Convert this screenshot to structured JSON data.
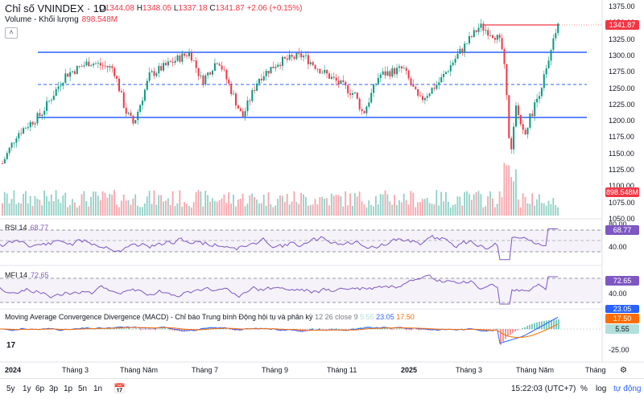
{
  "header": {
    "title": "Chỉ số VNINDEX · 1D",
    "ohlc": {
      "o_label": "O",
      "o": "1344.08",
      "h_label": "H",
      "h": "1348.05",
      "l_label": "L",
      "l": "1337.18",
      "c_label": "C",
      "c": "1341.87",
      "change": "+2.06 (+0.15%)"
    },
    "volume_label": "Volume - Khối lượng",
    "volume_value": "898.548M"
  },
  "price_axis": {
    "ticks": [
      "1375.00",
      "1350.00",
      "1325.00",
      "1300.00",
      "1275.00",
      "1250.00",
      "1225.00",
      "1200.00",
      "1175.00",
      "1150.00",
      "1125.00",
      "1100.00",
      "1075.00",
      "1050.00"
    ],
    "last_price": "1341.87",
    "last_volume": "898.548M"
  },
  "rsi": {
    "label": "RSI",
    "period": "14",
    "value": "68.77",
    "ticks": [
      "80.00",
      "40.00"
    ]
  },
  "mfi": {
    "label": "MFI",
    "period": "14",
    "value": "72.65",
    "ticks": [
      "80.00",
      "40.00"
    ]
  },
  "macd": {
    "label": "Moving Average Convergence Divergence (MACD) - Chỉ báo Trung bình Động hội tụ và phân kỳ",
    "params": "12 26 close 9",
    "v1": "5.55",
    "v2": "23.05",
    "v3": "17.50",
    "ticks": [
      "-25.00"
    ]
  },
  "time_axis": [
    "2024",
    "Tháng 3",
    "Tháng Năm",
    "Tháng 7",
    "Tháng 9",
    "Tháng 11",
    "2025",
    "Tháng 3",
    "Tháng Năm",
    "Tháng"
  ],
  "bottom": {
    "ranges": [
      "5y",
      "1y",
      "6p",
      "3p",
      "1p",
      "5n",
      "1n"
    ],
    "time": "15:22:03 (UTC+7)",
    "pct": "%",
    "log": "log",
    "auto": "tự động"
  },
  "colors": {
    "up": "#089981",
    "down": "#f23645",
    "hline": "#2962ff",
    "osc": "#7e57c2",
    "macd": "#2962ff",
    "signal": "#ff6d00"
  }
}
